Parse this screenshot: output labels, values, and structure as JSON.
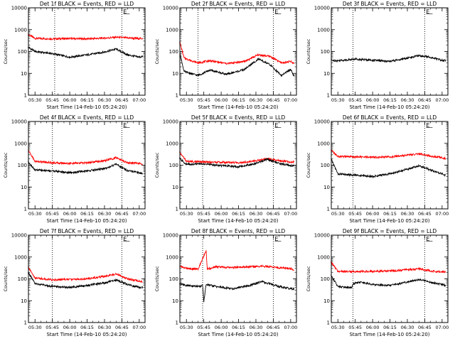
{
  "colors": {
    "events": "#000000",
    "lld": "#ff0000",
    "marker": "#000000"
  },
  "chart_data": [
    {
      "type": "line",
      "title": "Det 1f BLACK = Events, RED = LLD",
      "ylabel": "Counts/sec",
      "xlabel": "Start Time (14-Feb-10 05:24:20)",
      "yscale": "log",
      "ylim": [
        1,
        10000
      ],
      "xlim": [
        "05:24:20",
        "07:05:00"
      ],
      "xticks": [
        "05:30",
        "05:45",
        "06:00",
        "06:15",
        "06:30",
        "06:45",
        "07:00"
      ],
      "yticks": [
        "1",
        "10",
        "100",
        "1000",
        "10000"
      ],
      "marker_label": "E",
      "dotted_lines": [
        "05:47",
        "06:45"
      ],
      "series": [
        {
          "color_key": "lld",
          "x": [
            "05:24",
            "05:30",
            "05:45",
            "06:00",
            "06:15",
            "06:30",
            "06:40",
            "06:50",
            "07:00",
            "07:03"
          ],
          "values": [
            600,
            400,
            380,
            390,
            380,
            410,
            450,
            420,
            390,
            400
          ]
        },
        {
          "color_key": "events",
          "x": [
            "05:24",
            "05:30",
            "05:45",
            "06:00",
            "06:15",
            "06:30",
            "06:40",
            "06:50",
            "07:00",
            "07:03"
          ],
          "values": [
            160,
            100,
            80,
            55,
            70,
            95,
            130,
            70,
            55,
            60
          ]
        }
      ]
    },
    {
      "type": "line",
      "title": "Det 2f BLACK = Events, RED = LLD",
      "ylabel": "Counts/sec",
      "xlabel": "Start Time (14-Feb-10 05:24:20)",
      "yscale": "log",
      "ylim": [
        1,
        10000
      ],
      "xlim": [
        "05:24:20",
        "07:05:00"
      ],
      "xticks": [
        "05:30",
        "05:45",
        "06:00",
        "06:15",
        "06:30",
        "06:45",
        "07:00"
      ],
      "yticks": [
        "1",
        "10",
        "100",
        "1000",
        "10000"
      ],
      "marker_label": "E",
      "dotted_lines": [
        "05:40",
        "06:45"
      ],
      "series": [
        {
          "color_key": "lld",
          "x": [
            "05:24",
            "05:28",
            "05:40",
            "05:50",
            "06:05",
            "06:20",
            "06:32",
            "06:42",
            "06:52",
            "07:00",
            "07:03"
          ],
          "values": [
            300,
            50,
            30,
            38,
            28,
            35,
            70,
            60,
            30,
            35,
            28
          ]
        },
        {
          "color_key": "events",
          "x": [
            "05:24",
            "05:28",
            "05:40",
            "05:50",
            "06:05",
            "06:20",
            "06:32",
            "06:42",
            "06:52",
            "07:00",
            "07:03"
          ],
          "values": [
            100,
            12,
            8,
            14,
            9,
            15,
            45,
            25,
            8,
            15,
            7
          ]
        }
      ]
    },
    {
      "type": "line",
      "title": "Det 3f BLACK = Events, RED = LLD",
      "ylabel": "Counts/sec",
      "xlabel": "Start Time (14-Feb-10 05:24:20)",
      "yscale": "log",
      "ylim": [
        1,
        10000
      ],
      "xlim": [
        "05:24:20",
        "07:05:00"
      ],
      "xticks": [
        "05:30",
        "05:45",
        "06:00",
        "06:15",
        "06:30",
        "06:45",
        "07:00"
      ],
      "yticks": [
        "1",
        "10",
        "100",
        "1000",
        "10000"
      ],
      "marker_label": "E",
      "dotted_lines": [
        "05:43",
        "06:45"
      ],
      "series": [
        {
          "color_key": "events",
          "x": [
            "05:24",
            "05:30",
            "05:45",
            "06:00",
            "06:15",
            "06:30",
            "06:40",
            "06:50",
            "07:00",
            "07:03"
          ],
          "values": [
            40,
            38,
            45,
            40,
            35,
            50,
            65,
            55,
            40,
            38
          ]
        }
      ]
    },
    {
      "type": "line",
      "title": "Det 4f BLACK = Events, RED = LLD",
      "ylabel": "Counts/sec",
      "xlabel": "Start Time (14-Feb-10 05:24:20)",
      "yscale": "log",
      "ylim": [
        1,
        10000
      ],
      "xlim": [
        "05:24:20",
        "07:05:00"
      ],
      "xticks": [
        "05:30",
        "05:45",
        "06:00",
        "06:15",
        "06:30",
        "06:45",
        "07:00"
      ],
      "yticks": [
        "1",
        "10",
        "100",
        "1000",
        "10000"
      ],
      "marker_label": "E",
      "dotted_lines": [
        "05:45",
        "06:45"
      ],
      "series": [
        {
          "color_key": "lld",
          "x": [
            "05:24",
            "05:30",
            "05:45",
            "06:00",
            "06:15",
            "06:30",
            "06:40",
            "06:50",
            "07:00",
            "07:03"
          ],
          "values": [
            500,
            150,
            130,
            120,
            130,
            160,
            220,
            130,
            120,
            110
          ]
        },
        {
          "color_key": "events",
          "x": [
            "05:24",
            "05:30",
            "05:45",
            "06:00",
            "06:15",
            "06:30",
            "06:40",
            "06:50",
            "07:00",
            "07:03"
          ],
          "values": [
            150,
            60,
            55,
            45,
            55,
            70,
            110,
            55,
            45,
            42
          ]
        }
      ]
    },
    {
      "type": "line",
      "title": "Det 5f BLACK = Events, RED = LLD",
      "ylabel": "Counts/sec",
      "xlabel": "Start Time (14-Feb-10 05:24:20)",
      "yscale": "log",
      "ylim": [
        1,
        10000
      ],
      "xlim": [
        "05:24:20",
        "07:05:00"
      ],
      "xticks": [
        "05:30",
        "05:45",
        "06:00",
        "06:15",
        "06:30",
        "06:45",
        "07:00"
      ],
      "yticks": [
        "1",
        "10",
        "100",
        "1000",
        "10000"
      ],
      "marker_label": "E",
      "dotted_lines": [
        "05:44",
        "06:45"
      ],
      "series": [
        {
          "color_key": "lld",
          "x": [
            "05:24",
            "05:30",
            "05:45",
            "06:00",
            "06:15",
            "06:30",
            "06:40",
            "06:50",
            "07:00",
            "07:03"
          ],
          "values": [
            400,
            150,
            140,
            135,
            130,
            160,
            200,
            160,
            140,
            140
          ]
        },
        {
          "color_key": "events",
          "x": [
            "05:24",
            "05:30",
            "05:45",
            "06:00",
            "06:15",
            "06:30",
            "06:40",
            "06:50",
            "07:00",
            "07:03"
          ],
          "values": [
            200,
            110,
            115,
            95,
            85,
            120,
            190,
            120,
            95,
            95
          ]
        }
      ]
    },
    {
      "type": "line",
      "title": "Det 6f BLACK = Events, RED = LLD",
      "ylabel": "Counts/sec",
      "xlabel": "Start Time (14-Feb-10 05:24:20)",
      "yscale": "log",
      "ylim": [
        1,
        10000
      ],
      "xlim": [
        "05:24:20",
        "07:05:00"
      ],
      "xticks": [
        "05:30",
        "05:45",
        "06:00",
        "06:15",
        "06:30",
        "06:45",
        "07:00"
      ],
      "yticks": [
        "1",
        "10",
        "100",
        "1000",
        "10000"
      ],
      "marker_label": "E",
      "dotted_lines": [
        "05:43",
        "06:45"
      ],
      "series": [
        {
          "color_key": "lld",
          "x": [
            "05:24",
            "05:30",
            "05:45",
            "06:00",
            "06:15",
            "06:30",
            "06:40",
            "06:50",
            "07:00",
            "07:03"
          ],
          "values": [
            500,
            250,
            240,
            230,
            240,
            290,
            330,
            260,
            220,
            200
          ]
        },
        {
          "color_key": "events",
          "x": [
            "05:24",
            "05:30",
            "05:45",
            "06:00",
            "06:15",
            "06:30",
            "06:40",
            "06:50",
            "07:00",
            "07:03"
          ],
          "values": [
            200,
            40,
            35,
            30,
            40,
            65,
            95,
            60,
            40,
            35
          ]
        }
      ]
    },
    {
      "type": "line",
      "title": "Det 7f BLACK = Events, RED = LLD",
      "ylabel": "Counts/sec",
      "xlabel": "Start Time (14-Feb-10 05:24:20)",
      "yscale": "log",
      "ylim": [
        1,
        10000
      ],
      "xlim": [
        "05:24:20",
        "07:05:00"
      ],
      "xticks": [
        "05:30",
        "05:45",
        "06:00",
        "06:15",
        "06:30",
        "06:45",
        "07:00"
      ],
      "yticks": [
        "1",
        "10",
        "100",
        "1000",
        "10000"
      ],
      "marker_label": "E",
      "dotted_lines": [
        "05:45",
        "06:45"
      ],
      "series": [
        {
          "color_key": "lld",
          "x": [
            "05:24",
            "05:30",
            "05:45",
            "06:00",
            "06:15",
            "06:30",
            "06:40",
            "06:50",
            "07:00",
            "07:03"
          ],
          "values": [
            350,
            110,
            90,
            95,
            100,
            130,
            170,
            100,
            80,
            75
          ]
        },
        {
          "color_key": "events",
          "x": [
            "05:24",
            "05:30",
            "05:45",
            "06:00",
            "06:15",
            "06:30",
            "06:40",
            "06:50",
            "07:00",
            "07:03"
          ],
          "values": [
            200,
            60,
            45,
            40,
            50,
            65,
            90,
            55,
            40,
            40
          ]
        }
      ]
    },
    {
      "type": "line",
      "title": "Det 8f BLACK = Events, RED = LLD",
      "ylabel": "Counts/sec",
      "xlabel": "Start Time (14-Feb-10 05:24:20)",
      "yscale": "log",
      "ylim": [
        1,
        10000
      ],
      "xlim": [
        "05:24:20",
        "07:05:00"
      ],
      "xticks": [
        "05:30",
        "05:45",
        "06:00",
        "06:15",
        "06:30",
        "06:45",
        "07:00"
      ],
      "yticks": [
        "1",
        "10",
        "100",
        "1000",
        "10000"
      ],
      "marker_label": "E",
      "dotted_lines": [
        "05:44",
        "06:45"
      ],
      "series": [
        {
          "color_key": "lld",
          "x": [
            "05:24",
            "05:30",
            "05:40",
            "05:47",
            "05:48",
            "05:55",
            "06:10",
            "06:25",
            "06:35",
            "06:50",
            "07:00",
            "07:03"
          ],
          "values": [
            380,
            300,
            280,
            2000,
            280,
            350,
            330,
            360,
            380,
            320,
            290,
            260
          ]
        },
        {
          "color_key": "events",
          "x": [
            "05:24",
            "05:30",
            "05:40",
            "05:44",
            "05:45",
            "05:47",
            "05:55",
            "06:10",
            "06:25",
            "06:35",
            "06:50",
            "07:00",
            "07:03"
          ],
          "values": [
            60,
            50,
            45,
            50,
            9,
            55,
            45,
            35,
            50,
            75,
            45,
            35,
            35
          ]
        }
      ]
    },
    {
      "type": "line",
      "title": "Det 9f BLACK = Events, RED = LLD",
      "ylabel": "Counts/sec",
      "xlabel": "Start Time (14-Feb-10 05:24:20)",
      "yscale": "log",
      "ylim": [
        1,
        10000
      ],
      "xlim": [
        "05:24:20",
        "07:05:00"
      ],
      "xticks": [
        "05:30",
        "05:45",
        "06:00",
        "06:15",
        "06:30",
        "06:45",
        "07:00"
      ],
      "yticks": [
        "1",
        "10",
        "100",
        "1000",
        "10000"
      ],
      "marker_label": "E",
      "dotted_lines": [
        "05:43",
        "06:45"
      ],
      "series": [
        {
          "color_key": "lld",
          "x": [
            "05:24",
            "05:30",
            "05:45",
            "06:00",
            "06:15",
            "06:30",
            "06:40",
            "06:50",
            "07:00",
            "07:03"
          ],
          "values": [
            600,
            220,
            215,
            220,
            230,
            260,
            290,
            230,
            210,
            210
          ]
        },
        {
          "color_key": "events",
          "x": [
            "05:24",
            "05:30",
            "05:42",
            "05:43",
            "05:50",
            "06:00",
            "06:15",
            "06:30",
            "06:40",
            "06:50",
            "07:00",
            "07:03"
          ],
          "values": [
            150,
            45,
            40,
            60,
            70,
            55,
            50,
            70,
            95,
            70,
            55,
            50
          ]
        }
      ]
    }
  ]
}
